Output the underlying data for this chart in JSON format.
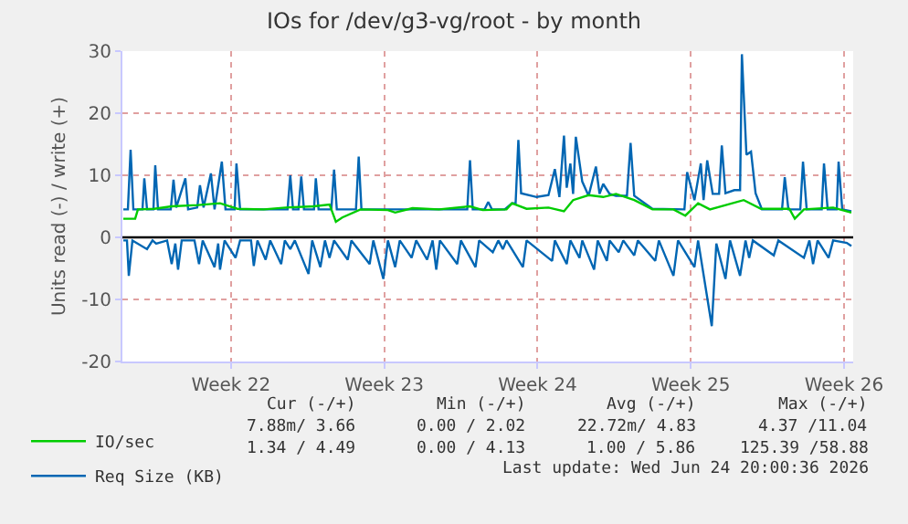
{
  "chart_data": {
    "type": "line",
    "title": "IOs for /dev/g3-vg/root - by month",
    "ylabel": "Units read (-) / write (+)",
    "xlim": [
      "2026-05-20T01:00",
      "2026-06-22T10:00"
    ],
    "xticks": [
      {
        "value": "2026-05-25",
        "label": "Week 22"
      },
      {
        "value": "2026-06-01",
        "label": "Week 23"
      },
      {
        "value": "2026-06-08",
        "label": "Week 24"
      },
      {
        "value": "2026-06-15",
        "label": "Week 25"
      },
      {
        "value": "2026-06-22",
        "label": "Week 26"
      }
    ],
    "ylim": [
      -20,
      30
    ],
    "yticks": [
      -20,
      -10,
      0,
      10,
      20,
      30
    ],
    "grid": true,
    "legend": "bottom",
    "marker": "none",
    "line_style": "solid",
    "ref_lines": [
      {
        "axis": "y",
        "value": 0,
        "label": null,
        "color": "#000000"
      }
    ],
    "series": [
      {
        "name": "Req Size (KB)",
        "color": "#0066b3",
        "x": [
          "2026-05-20T02:00",
          "2026-05-20T07:00",
          "2026-05-20T10:00",
          "2026-05-20T13:00",
          "2026-05-20T23:00",
          "2026-05-21T01:00",
          "2026-05-21T04:00",
          "2026-05-21T11:00",
          "2026-05-21T13:00",
          "2026-05-21T16:00",
          "2026-05-22T06:00",
          "2026-05-22T09:00",
          "2026-05-22T12:00",
          "2026-05-22T22:00",
          "2026-05-23T01:00",
          "2026-05-23T11:00",
          "2026-05-23T14:00",
          "2026-05-23T18:00",
          "2026-05-24T02:00",
          "2026-05-24T06:00",
          "2026-05-24T14:00",
          "2026-05-24T18:00",
          "2026-05-25T04:00",
          "2026-05-25T06:00",
          "2026-05-25T10:00",
          "2026-05-27T14:00",
          "2026-05-27T17:00",
          "2026-05-27T20:00",
          "2026-05-28T02:00",
          "2026-05-28T05:00",
          "2026-05-28T08:00",
          "2026-05-28T19:00",
          "2026-05-28T21:00",
          "2026-05-29T00:00",
          "2026-05-29T14:00",
          "2026-05-29T17:00",
          "2026-05-29T20:00",
          "2026-05-30T17:00",
          "2026-05-30T20:00",
          "2026-05-30T23:00",
          "2026-06-04T19:00",
          "2026-06-04T22:00",
          "2026-06-05T01:00",
          "2026-06-05T14:00",
          "2026-06-05T18:00",
          "2026-06-05T22:00",
          "2026-06-06T12:00",
          "2026-06-06T20:00",
          "2026-06-07T00:00",
          "2026-06-07T03:00",
          "2026-06-07T06:00",
          "2026-06-07T23:00",
          "2026-06-08T12:00",
          "2026-06-08T19:00",
          "2026-06-09T00:00",
          "2026-06-09T05:00",
          "2026-06-09T08:00",
          "2026-06-09T12:00",
          "2026-06-09T15:00",
          "2026-06-09T18:00",
          "2026-06-10T01:00",
          "2026-06-10T08:00",
          "2026-06-10T16:00",
          "2026-06-10T20:00",
          "2026-06-11T00:00",
          "2026-06-11T07:00",
          "2026-06-11T14:00",
          "2026-06-12T02:00",
          "2026-06-12T06:00",
          "2026-06-12T10:00",
          "2026-06-13T06:00",
          "2026-06-14T17:00",
          "2026-06-14T20:00",
          "2026-06-15T04:00",
          "2026-06-15T11:00",
          "2026-06-15T14:00",
          "2026-06-15T18:00",
          "2026-06-16T00:00",
          "2026-06-16T07:00",
          "2026-06-16T10:00",
          "2026-06-16T14:00",
          "2026-06-16T23:45",
          "2026-06-17T06:00",
          "2026-06-17T08:00",
          "2026-06-17T13:00",
          "2026-06-17T18:00",
          "2026-06-17T23:00",
          "2026-06-18T06:00",
          "2026-06-19T04:00",
          "2026-06-19T07:00",
          "2026-06-19T11:00",
          "2026-06-20T00:00",
          "2026-06-20T03:00",
          "2026-06-20T07:00",
          "2026-06-20T23:30",
          "2026-06-21T02:00",
          "2026-06-21T06:00",
          "2026-06-21T16:00",
          "2026-06-21T18:00",
          "2026-06-21T22:00",
          "2026-06-22T08:00"
        ],
        "values": [
          4.5,
          4.5,
          14.1,
          4.5,
          4.5,
          9.5,
          4.5,
          4.5,
          11.6,
          4.5,
          4.5,
          9.3,
          4.8,
          9.5,
          4.5,
          4.8,
          8.4,
          4.8,
          10.3,
          4.5,
          12.2,
          4.5,
          4.5,
          11.9,
          4.5,
          4.5,
          10,
          4.5,
          4.5,
          9.8,
          4.5,
          4.5,
          9.5,
          4.5,
          4.5,
          10.9,
          4.5,
          4.5,
          13,
          4.5,
          4.5,
          12.4,
          4.5,
          4.5,
          5.7,
          4.5,
          4.5,
          5.5,
          5.5,
          15.7,
          7.1,
          6.5,
          6.8,
          11,
          6.5,
          16.4,
          8,
          11.9,
          7,
          16.2,
          9,
          6.7,
          11.4,
          7,
          8.6,
          7,
          6.7,
          6.7,
          15.2,
          6.7,
          4.6,
          4.5,
          10.5,
          6,
          11.9,
          6,
          12.4,
          7,
          7,
          14.8,
          7.1,
          7.6,
          7.6,
          29.5,
          13.3,
          13.8,
          7.1,
          4.5,
          4.5,
          9.7,
          4.5,
          4.5,
          12.2,
          4.5,
          4.5,
          11.9,
          4.5,
          4.5,
          12.2,
          4.5,
          4.2
        ]
      },
      {
        "color": "#0066b3",
        "x": [
          "2026-05-20T02:00",
          "2026-05-20T06:00",
          "2026-05-20T08:00",
          "2026-05-20T12:00",
          "2026-05-21T04:00",
          "2026-05-21T10:00",
          "2026-05-21T14:00",
          "2026-05-22T02:00",
          "2026-05-22T07:00",
          "2026-05-22T11:00",
          "2026-05-22T14:00",
          "2026-05-22T18:00",
          "2026-05-23T08:00",
          "2026-05-23T13:00",
          "2026-05-23T17:00",
          "2026-05-24T06:00",
          "2026-05-24T10:00",
          "2026-05-24T12:00",
          "2026-05-24T17:00",
          "2026-05-25T05:00",
          "2026-05-25T10:00",
          "2026-05-25T22:00",
          "2026-05-26T01:00",
          "2026-05-26T05:00",
          "2026-05-26T14:00",
          "2026-05-26T19:00",
          "2026-05-27T07:00",
          "2026-05-27T11:00",
          "2026-05-27T17:00",
          "2026-05-27T22:00",
          "2026-05-28T13:00",
          "2026-05-28T17:00",
          "2026-05-29T02:00",
          "2026-05-29T07:00",
          "2026-05-29T12:00",
          "2026-05-29T17:00",
          "2026-05-30T08:00",
          "2026-05-30T12:00",
          "2026-05-31T08:00",
          "2026-05-31T12:00",
          "2026-05-31T23:00",
          "2026-06-01T04:00",
          "2026-06-01T12:00",
          "2026-06-01T17:00",
          "2026-06-02T06:00",
          "2026-06-02T11:00",
          "2026-06-02T23:00",
          "2026-06-03T05:00",
          "2026-06-03T09:00",
          "2026-06-03T13:00",
          "2026-06-04T08:00",
          "2026-06-04T12:00",
          "2026-06-05T04:00",
          "2026-06-05T08:00",
          "2026-06-05T23:00",
          "2026-06-06T05:00",
          "2026-06-06T10:00",
          "2026-06-06T14:00",
          "2026-06-07T08:00",
          "2026-06-07T12:00",
          "2026-06-08T16:00",
          "2026-06-08T19:00",
          "2026-06-09T08:00",
          "2026-06-09T12:00",
          "2026-06-09T22:00",
          "2026-06-10T01:00",
          "2026-06-10T14:00",
          "2026-06-10T18:00",
          "2026-06-11T04:00",
          "2026-06-11T07:00",
          "2026-06-11T17:00",
          "2026-06-11T22:00",
          "2026-06-12T10:00",
          "2026-06-12T14:00",
          "2026-06-13T09:00",
          "2026-06-13T13:00",
          "2026-06-14T05:00",
          "2026-06-14T10:00",
          "2026-06-15T04:00",
          "2026-06-15T08:00",
          "2026-06-15T23:00",
          "2026-06-16T04:00",
          "2026-06-16T14:00",
          "2026-06-16T19:00",
          "2026-06-17T06:00",
          "2026-06-17T12:00",
          "2026-06-17T16:00",
          "2026-06-17T20:00",
          "2026-06-18T19:00",
          "2026-06-19T00:00",
          "2026-06-20T04:00",
          "2026-06-20T10:00",
          "2026-06-20T14:00",
          "2026-06-20T19:00",
          "2026-06-21T07:00",
          "2026-06-21T12:00",
          "2026-06-22T03:00",
          "2026-06-22T08:00"
        ],
        "values": [
          -0.5,
          -0.5,
          -6.2,
          -0.5,
          -1.9,
          -0.5,
          -1,
          -0.5,
          -4.3,
          -1,
          -5.2,
          -0.5,
          -0.5,
          -4.3,
          -0.5,
          -4.8,
          -1,
          -5.2,
          -0.5,
          -3.3,
          -0.5,
          -0.5,
          -4.6,
          -0.5,
          -3.6,
          -0.5,
          -4.3,
          -0.5,
          -1.9,
          -0.5,
          -5.9,
          -0.5,
          -4.8,
          -0.5,
          -3.3,
          -0.5,
          -3.6,
          -0.5,
          -4.3,
          -0.5,
          -6.7,
          -0.5,
          -4.8,
          -0.5,
          -3.3,
          -0.5,
          -3.6,
          -0.5,
          -5.2,
          -0.5,
          -4.3,
          -0.5,
          -4.8,
          -0.5,
          -2.4,
          -0.5,
          -1.9,
          -0.5,
          -4.8,
          -0.5,
          -3.8,
          -0.5,
          -4.3,
          -0.5,
          -3.3,
          -0.5,
          -5.2,
          -0.5,
          -3.8,
          -0.5,
          -2.4,
          -0.5,
          -2.9,
          -0.5,
          -3.8,
          -0.5,
          -6.2,
          -0.5,
          -4.8,
          -0.5,
          -14.3,
          -1,
          -6.7,
          -0.5,
          -6.2,
          -0.5,
          -3.3,
          -0.5,
          -2.9,
          -0.5,
          -3.3,
          -0.5,
          -4.3,
          -0.5,
          -3.3,
          -0.5,
          -0.9,
          -1.4
        ]
      },
      {
        "name": "IO/sec",
        "color": "#00cc00",
        "x": [
          "2026-05-20T02:00",
          "2026-05-20T15:00",
          "2026-05-20T18:00",
          "2026-05-21T12:00",
          "2026-05-22T07:00",
          "2026-05-23T12:00",
          "2026-05-24T12:00",
          "2026-05-25T07:00",
          "2026-05-26T12:00",
          "2026-05-27T12:00",
          "2026-05-28T19:00",
          "2026-05-29T12:00",
          "2026-05-29T19:00",
          "2026-05-30T02:00",
          "2026-05-30T22:00",
          "2026-06-01T04:00",
          "2026-06-01T12:00",
          "2026-06-02T07:00",
          "2026-06-03T12:00",
          "2026-06-04T22:00",
          "2026-06-05T12:00",
          "2026-06-06T14:00",
          "2026-06-06T20:00",
          "2026-06-07T12:00",
          "2026-06-08T12:00",
          "2026-06-09T05:00",
          "2026-06-09T15:00",
          "2026-06-10T08:00",
          "2026-06-11T00:00",
          "2026-06-11T14:00",
          "2026-06-12T10:00",
          "2026-06-13T06:00",
          "2026-06-14T05:00",
          "2026-06-14T18:00",
          "2026-06-15T08:00",
          "2026-06-15T21:00",
          "2026-06-17T10:00",
          "2026-06-18T05:00",
          "2026-06-19T12:00",
          "2026-06-19T18:00",
          "2026-06-20T04:00",
          "2026-06-21T12:00",
          "2026-06-22T08:00"
        ],
        "values": [
          3,
          3,
          4.5,
          4.6,
          5,
          5.2,
          5.5,
          4.6,
          4.5,
          4.8,
          5,
          5.3,
          2.5,
          3.2,
          4.5,
          4.4,
          4,
          4.7,
          4.5,
          5,
          4.4,
          4.5,
          5.5,
          4.6,
          4.8,
          4.2,
          6,
          6.8,
          6.5,
          7,
          6,
          4.5,
          4.5,
          3.5,
          5.5,
          4.5,
          6,
          4.6,
          4.6,
          3,
          4.5,
          4.8,
          4
        ]
      }
    ],
    "annotations": [
      "Cur (-/+)",
      "Min (-/+)",
      "Avg (-/+)",
      "Max (-/+)",
      "7.88m/ 3.66",
      "0.00 / 2.02",
      "22.72m/ 4.83",
      "4.37 /11.04",
      "1.34 / 4.49",
      "0.00 / 4.13",
      "1.00 / 5.86",
      "125.39 /58.88",
      "Last update: Wed Jun 24 20:00:36 2026"
    ]
  }
}
